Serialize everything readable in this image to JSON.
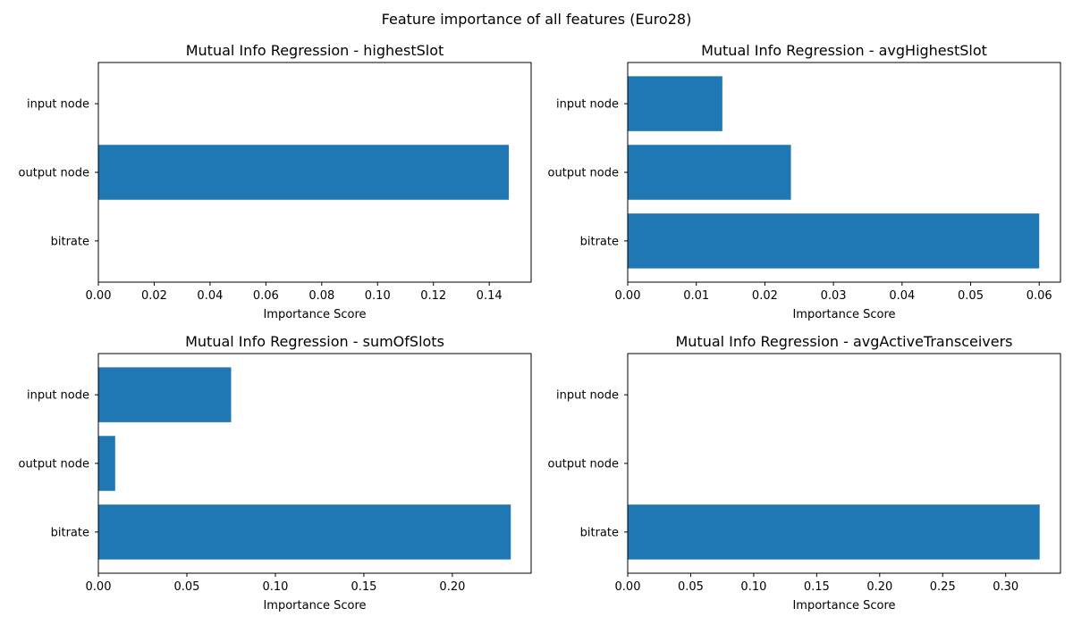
{
  "figure": {
    "suptitle": "Feature importance of all features (Euro28)"
  },
  "style": {
    "bar_color": "#1f77b4",
    "axis_color": "#000000",
    "background": "#ffffff"
  },
  "chart_data": [
    {
      "type": "bar",
      "orientation": "horizontal",
      "title": "Mutual Info Regression - highestSlot",
      "xlabel": "Importance Score",
      "ylabel": "",
      "categories": [
        "input node",
        "output node",
        "bitrate"
      ],
      "values": [
        0,
        0.147,
        0
      ],
      "xlim": [
        0,
        0.155
      ],
      "xticks": [
        0,
        0.02,
        0.04,
        0.06,
        0.08,
        0.1,
        0.12,
        0.14
      ],
      "xtick_labels": [
        "0.00",
        "0.02",
        "0.04",
        "0.06",
        "0.08",
        "0.10",
        "0.12",
        "0.14"
      ],
      "grid": false
    },
    {
      "type": "bar",
      "orientation": "horizontal",
      "title": "Mutual Info Regression - avgHighestSlot",
      "xlabel": "Importance Score",
      "ylabel": "",
      "categories": [
        "input node",
        "output node",
        "bitrate"
      ],
      "values": [
        0.0138,
        0.0238,
        0.06
      ],
      "xlim": [
        0,
        0.0631
      ],
      "xticks": [
        0,
        0.01,
        0.02,
        0.03,
        0.04,
        0.05,
        0.06
      ],
      "xtick_labels": [
        "0.00",
        "0.01",
        "0.02",
        "0.03",
        "0.04",
        "0.05",
        "0.06"
      ],
      "grid": false
    },
    {
      "type": "bar",
      "orientation": "horizontal",
      "title": "Mutual Info Regression - sumOfSlots",
      "xlabel": "Importance Score",
      "ylabel": "",
      "categories": [
        "input node",
        "output node",
        "bitrate"
      ],
      "values": [
        0.075,
        0.0095,
        0.233
      ],
      "xlim": [
        0,
        0.2445
      ],
      "xticks": [
        0,
        0.05,
        0.1,
        0.15,
        0.2
      ],
      "xtick_labels": [
        "0.00",
        "0.05",
        "0.10",
        "0.15",
        "0.20"
      ],
      "grid": false
    },
    {
      "type": "bar",
      "orientation": "horizontal",
      "title": "Mutual Info Regression - avgActiveTransceivers",
      "xlabel": "Importance Score",
      "ylabel": "",
      "categories": [
        "input node",
        "output node",
        "bitrate"
      ],
      "values": [
        0,
        0,
        0.327
      ],
      "xlim": [
        0,
        0.3435
      ],
      "xticks": [
        0,
        0.05,
        0.1,
        0.15,
        0.2,
        0.25,
        0.3
      ],
      "xtick_labels": [
        "0.00",
        "0.05",
        "0.10",
        "0.15",
        "0.20",
        "0.25",
        "0.30"
      ],
      "grid": false
    }
  ]
}
